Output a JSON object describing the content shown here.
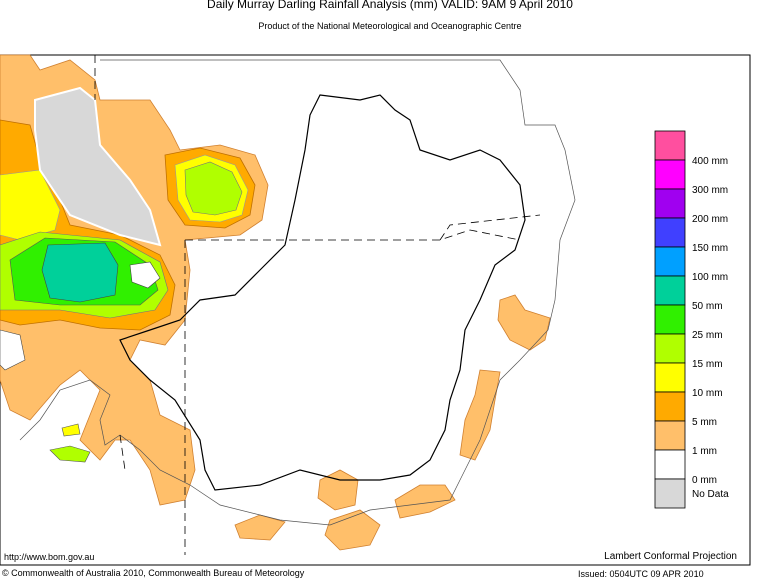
{
  "header": {
    "title": "Daily Murray Darling Rainfall Analysis (mm)  VALID: 9AM  9 April 2010",
    "subtitle": "Product of the National Meteorological and Oceanographic Centre"
  },
  "legend": {
    "colors": [
      "#ff4f9f",
      "#ff00ff",
      "#a000f0",
      "#4040ff",
      "#00a0ff",
      "#00d09a",
      "#30f000",
      "#b0ff00",
      "#ffff00",
      "#ffaa00",
      "#ffbf6a",
      "#ffffff",
      "#d8d8d8"
    ],
    "labels": [
      "400 mm",
      "300 mm",
      "200 mm",
      "150 mm",
      "100 mm",
      "50 mm",
      "25 mm",
      "15 mm",
      "10 mm",
      "5 mm",
      "1 mm",
      "0 mm"
    ],
    "no_data": "No Data"
  },
  "footer": {
    "url": "http://www.bom.gov.au",
    "projection": "Lambert Conformal Projection",
    "copyright": "© Commonwealth of Australia 2010, Commonwealth Bureau of Meteorology",
    "issued": "Issued: 0504UTC 09 APR 2010"
  }
}
